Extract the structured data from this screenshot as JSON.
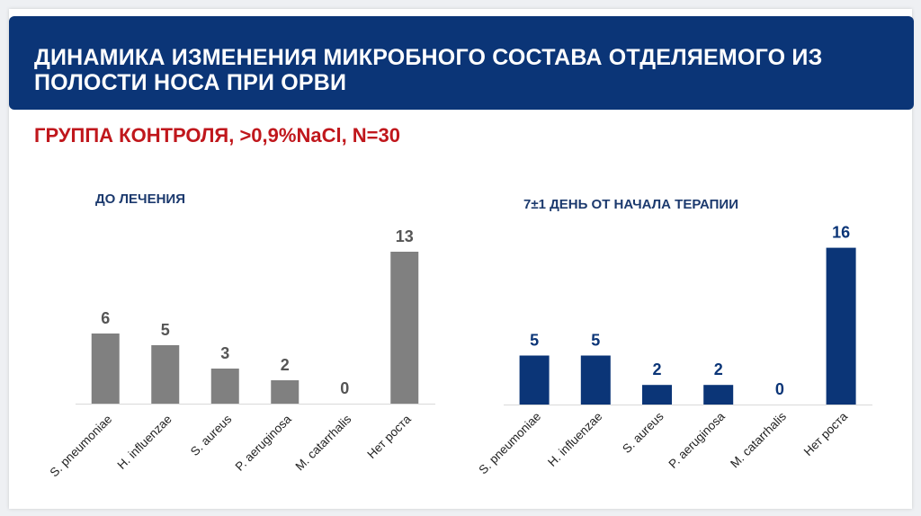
{
  "slide": {
    "title": "ДИНАМИКА ИЗМЕНЕНИЯ МИКРОБНОГО СОСТАВА ОТДЕЛЯЕМОГО ИЗ ПОЛОСТИ НОСА ПРИ ОРВИ",
    "subtitle": "ГРУППА КОНТРОЛЯ, >0,9%NaCl, N=30"
  },
  "colors": {
    "header_bg": "#0b3577",
    "subtitle": "#c0171c",
    "bar_before": "#808080",
    "bar_after": "#0b3577"
  },
  "chart_data": [
    {
      "type": "bar",
      "title": "ДО ЛЕЧЕНИЯ",
      "categories": [
        "S. pneumoniae",
        "H. influenzae",
        "S. aureus",
        "P. aeruginosa",
        "M. catarrhalis",
        "Нет роста"
      ],
      "values": [
        6,
        5,
        3,
        2,
        0,
        13
      ],
      "color": "#808080",
      "label_color": "#555555",
      "data_labels": true,
      "grid": false,
      "legend": "none"
    },
    {
      "type": "bar",
      "title": "7±1 ДЕНЬ ОТ НАЧАЛА ТЕРАПИИ",
      "categories": [
        "S. pneumoniae",
        "H. influenzae",
        "S. aureus",
        "P. aeruginosa",
        "M. catarrhalis",
        "Нет роста"
      ],
      "values": [
        5,
        5,
        2,
        2,
        0,
        16
      ],
      "color": "#0b3577",
      "label_color": "#0b3577",
      "data_labels": true,
      "grid": false,
      "legend": "none"
    }
  ]
}
